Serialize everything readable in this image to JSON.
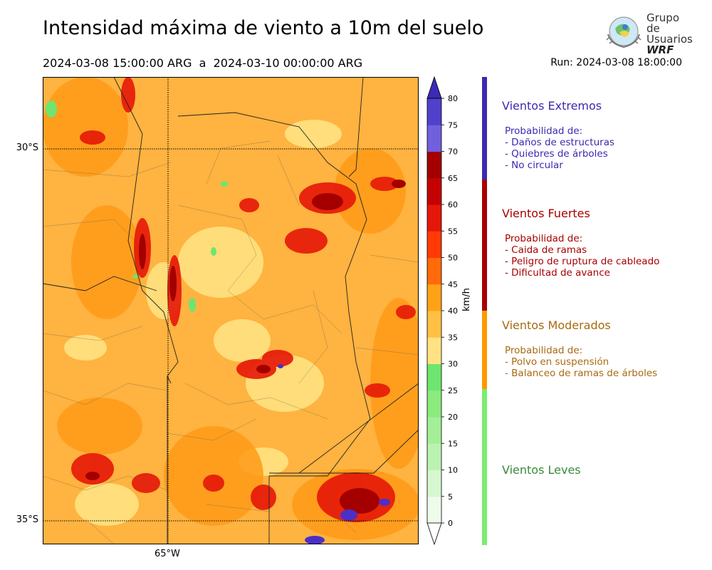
{
  "header": {
    "title": "Intensidad máxima de viento a 10m del suelo",
    "period": "2024-03-08 15:00:00 ARG  a  2024-03-10 00:00:00 ARG",
    "run": "Run: 2024-03-08 18:00:00"
  },
  "logo": {
    "line1": "Grupo de",
    "line2": "Usuarios",
    "line3": "WRF"
  },
  "map": {
    "lat_labels": [
      "30°S",
      "35°S"
    ],
    "lon_labels": [
      "65°W"
    ]
  },
  "colorbar": {
    "unit": "km/h",
    "ticks": [
      "0",
      "5",
      "10",
      "15",
      "20",
      "25",
      "30",
      "35",
      "40",
      "45",
      "50",
      "55",
      "60",
      "65",
      "70",
      "75",
      "80"
    ],
    "colors": [
      "#eefbea",
      "#d6f7cf",
      "#bcf2b1",
      "#a3ee96",
      "#8beb7e",
      "#6ee56e",
      "#ffe282",
      "#ffc044",
      "#ffa215",
      "#ff6a0a",
      "#ff3a05",
      "#e51708",
      "#c50202",
      "#a40000",
      "#7060dd",
      "#5040cc",
      "#3a2ab5"
    ],
    "tip_top_color": "#3a2ab5",
    "tip_bottom_color": "#ffffff"
  },
  "categories": [
    {
      "title": "Vientos Extremos",
      "color": "#3b2ab0",
      "lines": "Probabilidad de:\n- Daños de estructuras\n- Quiebres de árboles\n- No circular"
    },
    {
      "title": "Vientos Fuertes",
      "color": "#a80000",
      "lines": "Probabilidad de:\n- Caida de ramas\n- Peligro de ruptura de cableado\n- Dificultad de avance"
    },
    {
      "title": "Vientos Moderados",
      "color": "#a86a10",
      "lines": "Probabilidad de:\n- Polvo en suspensión\n- Balanceo de ramas de árboles"
    },
    {
      "title": "Vientos Leves",
      "color": "#3a8a3a",
      "lines": ""
    }
  ],
  "category_bar_colors": [
    "#3b2ab0",
    "#a80000",
    "#ff9a00",
    "#78ee6e"
  ]
}
